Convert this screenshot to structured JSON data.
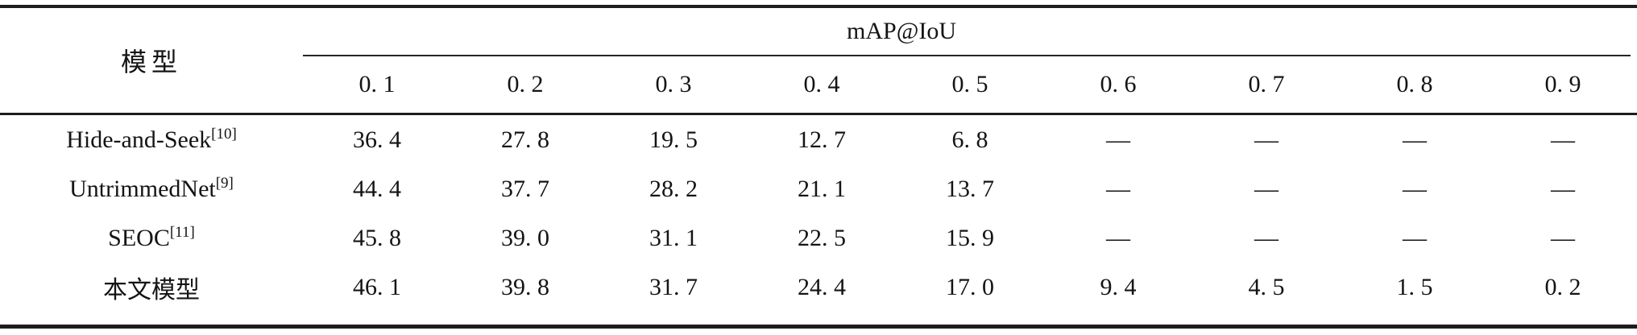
{
  "table": {
    "model_header": "模型",
    "group_header": "mAP@IoU",
    "iou_thresholds": [
      "0. 1",
      "0. 2",
      "0. 3",
      "0. 4",
      "0. 5",
      "0. 6",
      "0. 7",
      "0. 8",
      "0. 9"
    ],
    "rows": [
      {
        "model": "Hide-and-Seek",
        "ref": "[10]",
        "values": [
          "36. 4",
          "27. 8",
          "19. 5",
          "12. 7",
          "6. 8",
          "—",
          "—",
          "—",
          "—"
        ]
      },
      {
        "model": "UntrimmedNet",
        "ref": "[9]",
        "values": [
          "44. 4",
          "37. 7",
          "28. 2",
          "21. 1",
          "13. 7",
          "—",
          "—",
          "—",
          "—"
        ]
      },
      {
        "model": "SEOC",
        "ref": "[11]",
        "values": [
          "45. 8",
          "39. 0",
          "31. 1",
          "22. 5",
          "15. 9",
          "—",
          "—",
          "—",
          "—"
        ]
      },
      {
        "model": "本文模型",
        "ref": "",
        "values": [
          "46. 1",
          "39. 8",
          "31. 7",
          "24. 4",
          "17. 0",
          "9. 4",
          "4. 5",
          "1. 5",
          "0. 2"
        ]
      }
    ]
  }
}
